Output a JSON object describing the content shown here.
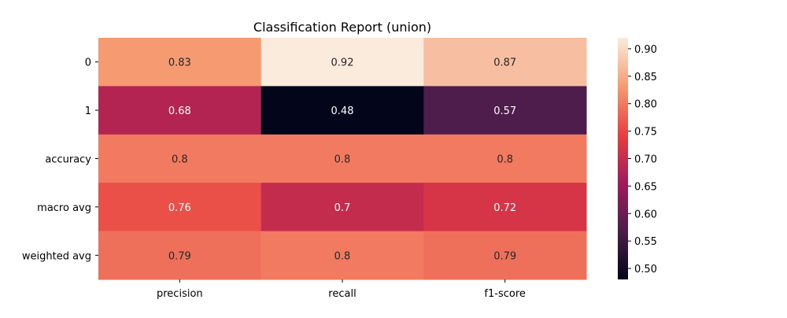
{
  "chart_data": {
    "type": "heatmap",
    "title": "Classification Report (union)",
    "xlabel": "",
    "ylabel": "",
    "columns": [
      "precision",
      "recall",
      "f1-score"
    ],
    "rows": [
      "0",
      "1",
      "accuracy",
      "macro avg",
      "weighted avg"
    ],
    "values": [
      [
        0.83,
        0.92,
        0.87
      ],
      [
        0.68,
        0.48,
        0.57
      ],
      [
        0.8,
        0.8,
        0.8
      ],
      [
        0.76,
        0.7,
        0.72
      ],
      [
        0.79,
        0.8,
        0.79
      ]
    ],
    "cell_labels": [
      [
        "0.83",
        "0.92",
        "0.87"
      ],
      [
        "0.68",
        "0.48",
        "0.57"
      ],
      [
        "0.8",
        "0.8",
        "0.8"
      ],
      [
        "0.76",
        "0.7",
        "0.72"
      ],
      [
        "0.79",
        "0.8",
        "0.79"
      ]
    ],
    "colorbar": {
      "range": [
        0.48,
        0.92
      ],
      "ticks": [
        0.5,
        0.55,
        0.6,
        0.65,
        0.7,
        0.75,
        0.8,
        0.85,
        0.9
      ],
      "tick_labels": [
        "0.50",
        "0.55",
        "0.60",
        "0.65",
        "0.70",
        "0.75",
        "0.80",
        "0.85",
        "0.90"
      ],
      "colormap": "rocket",
      "stops": [
        "#03051a",
        "#4c1d4b",
        "#a11a5b",
        "#e83f3f",
        "#f69c73",
        "#faebdd"
      ]
    }
  }
}
